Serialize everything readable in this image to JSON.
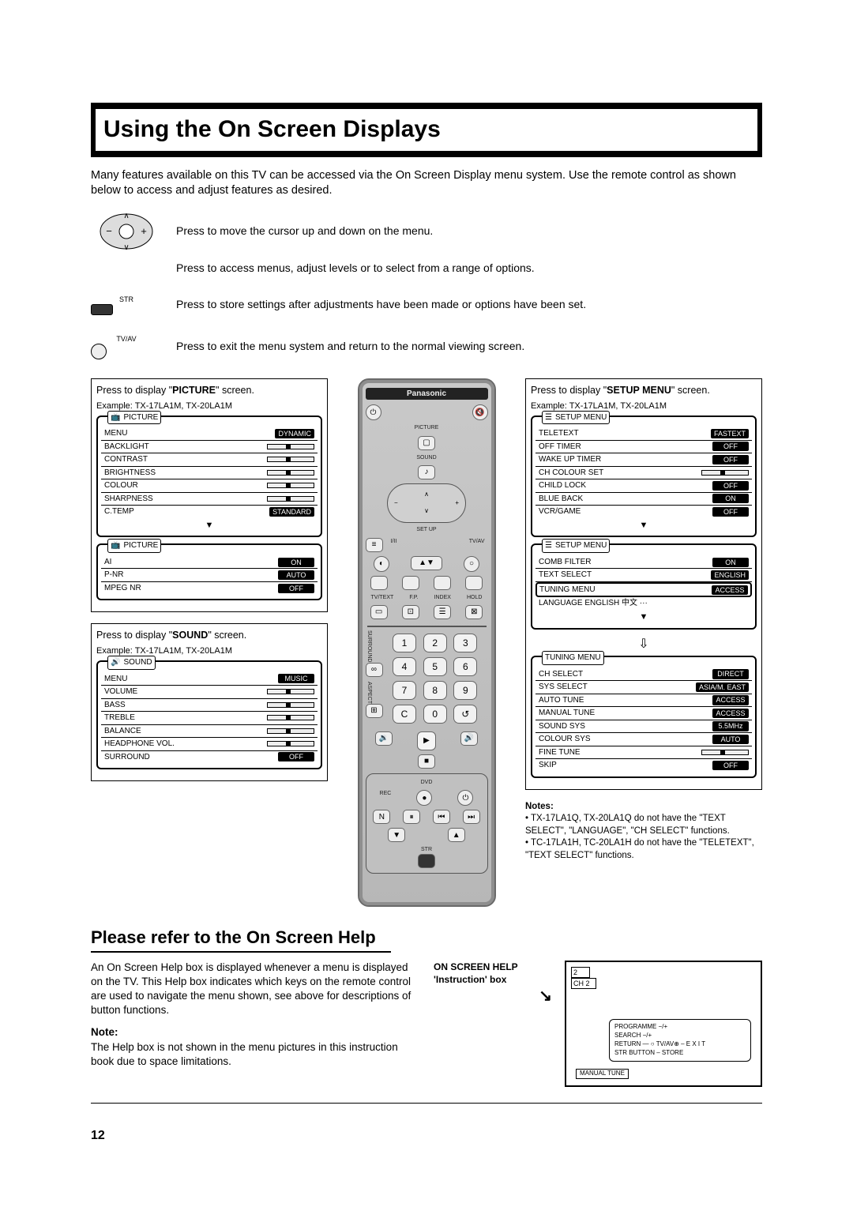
{
  "page_number": "12",
  "title": "Using the On Screen Displays",
  "intro": "Many features available on this TV can be accessed via the On Screen Display menu system. Use the remote control as shown below to access and adjust features as desired.",
  "controls": [
    {
      "icon": "⊕",
      "desc": "Press to move the cursor up and down on the menu."
    },
    {
      "icon": "⊖",
      "desc": "Press to access menus, adjust levels or to select from a range of options."
    },
    {
      "icon": "STR",
      "desc": "Press to store settings after adjustments have been made or options have been set."
    },
    {
      "icon": "TV/AV",
      "desc": "Press to exit the menu system and return to the normal viewing screen."
    }
  ],
  "picture_section": {
    "press_label_pre": "Press  to display \"",
    "press_label_bold": "PICTURE",
    "press_label_post": "\" screen.",
    "example": "Example: TX-17LA1M, TX-20LA1M",
    "menu1": {
      "title": "PICTURE",
      "rows": [
        {
          "label": "MENU",
          "val": "DYNAMIC",
          "type": "val"
        },
        {
          "label": "BACKLIGHT",
          "type": "slider"
        },
        {
          "label": "CONTRAST",
          "type": "slider"
        },
        {
          "label": "BRIGHTNESS",
          "type": "slider"
        },
        {
          "label": "COLOUR",
          "type": "slider"
        },
        {
          "label": "SHARPNESS",
          "type": "slider"
        },
        {
          "label": "C.TEMP",
          "val": "STANDARD",
          "type": "val"
        }
      ]
    },
    "menu2": {
      "title": "PICTURE",
      "rows": [
        {
          "label": "AI",
          "val": "ON",
          "type": "val"
        },
        {
          "label": "P-NR",
          "val": "AUTO",
          "type": "val"
        },
        {
          "label": "MPEG NR",
          "val": "OFF",
          "type": "val"
        }
      ]
    }
  },
  "sound_section": {
    "press_label_pre": "Press  to display \"",
    "press_label_bold": "SOUND",
    "press_label_post": "\" screen.",
    "example": "Example: TX-17LA1M, TX-20LA1M",
    "menu": {
      "title": "SOUND",
      "rows": [
        {
          "label": "MENU",
          "val": "MUSIC",
          "type": "val"
        },
        {
          "label": "VOLUME",
          "type": "slider"
        },
        {
          "label": "BASS",
          "type": "slider"
        },
        {
          "label": "TREBLE",
          "type": "slider"
        },
        {
          "label": "BALANCE",
          "type": "slider"
        },
        {
          "label": "HEADPHONE VOL.",
          "type": "slider"
        },
        {
          "label": "SURROUND",
          "val": "OFF",
          "type": "val"
        }
      ]
    }
  },
  "setup_section": {
    "press_label_pre": "Press  to display \"",
    "press_label_bold": "SETUP MENU",
    "press_label_post": "\" screen.",
    "example": "Example: TX-17LA1M, TX-20LA1M",
    "menu1": {
      "title": "SETUP MENU",
      "rows": [
        {
          "label": "TELETEXT",
          "val": "FASTEXT",
          "type": "val"
        },
        {
          "label": "OFF TIMER",
          "val": "OFF",
          "type": "val"
        },
        {
          "label": "WAKE UP TIMER",
          "val": "OFF",
          "type": "val"
        },
        {
          "label": "CH COLOUR SET",
          "type": "slider"
        },
        {
          "label": "CHILD LOCK",
          "val": "OFF",
          "type": "val"
        },
        {
          "label": "BLUE BACK",
          "val": "ON",
          "type": "val"
        },
        {
          "label": "VCR/GAME",
          "val": "OFF",
          "type": "val"
        }
      ]
    },
    "menu2": {
      "title": "SETUP MENU",
      "rows": [
        {
          "label": "COMB FILTER",
          "val": "ON",
          "type": "val"
        },
        {
          "label": "TEXT SELECT",
          "val": "ENGLISH",
          "type": "val"
        },
        {
          "label": "TUNING MENU",
          "val": "ACCESS",
          "type": "val",
          "hl": true
        },
        {
          "label": "LANGUAGE  ENGLISH  中文  ···",
          "type": "text"
        }
      ]
    },
    "tuning_menu": {
      "title": "TUNING MENU",
      "rows": [
        {
          "label": "CH SELECT",
          "val": "DIRECT",
          "type": "val"
        },
        {
          "label": "SYS SELECT",
          "val": "ASIA/M. EAST",
          "type": "val"
        },
        {
          "label": "AUTO TUNE",
          "val": "ACCESS",
          "type": "val"
        },
        {
          "label": "MANUAL TUNE",
          "val": "ACCESS",
          "type": "val"
        },
        {
          "label": "SOUND SYS",
          "val": "5.5MHz",
          "type": "val"
        },
        {
          "label": "COLOUR SYS",
          "val": "AUTO",
          "type": "val"
        },
        {
          "label": "FINE TUNE",
          "type": "slider"
        },
        {
          "label": "SKIP",
          "val": "OFF",
          "type": "val"
        }
      ]
    }
  },
  "right_notes": {
    "head": "Notes:",
    "items": [
      "TX-17LA1Q, TX-20LA1Q do not have the \"TEXT SELECT\", \"LANGUAGE\", \"CH SELECT\" functions.",
      "TC-17LA1H, TC-20LA1H do not have the \"TELETEXT\", \"TEXT SELECT\" functions."
    ]
  },
  "remote": {
    "brand": "Panasonic",
    "top_labels": [
      "PICTURE",
      "SOUND",
      "SET UP"
    ],
    "mid_labels": [
      "I/II",
      "TV/AV"
    ],
    "row_labels": [
      "TV/TEXT",
      "F.P.",
      "INDEX",
      "HOLD"
    ],
    "side_labels": [
      "SURROUND",
      "ASPECT"
    ],
    "numpad": [
      "1",
      "2",
      "3",
      "4",
      "5",
      "6",
      "7",
      "8",
      "9",
      "C",
      "0",
      "↺"
    ],
    "bottom_label": "DVD",
    "rec": "REC",
    "str": "STR",
    "n": "N"
  },
  "help_section": {
    "heading": "Please refer to the On Screen Help",
    "para": "An On Screen Help box is displayed whenever a menu is displayed on the TV. This Help box indicates which keys on the remote control are used to navigate the menu shown, see above for descriptions of button functions.",
    "note_head": "Note:",
    "note": "The Help box is not shown in the menu pictures in this instruction book due to space limitations.",
    "label1": "ON SCREEN HELP",
    "label2": "'Instruction' box",
    "tv_ch_top": "2",
    "tv_ch": "CH 2",
    "inner_lines": [
      "PROGRAMME  −/+",
      "SEARCH  −/+",
      "RETURN — ○   TV/AV⊕ – E X I T",
      "STR  BUTTON – STORE"
    ],
    "bottom": "MANUAL  TUNE"
  }
}
